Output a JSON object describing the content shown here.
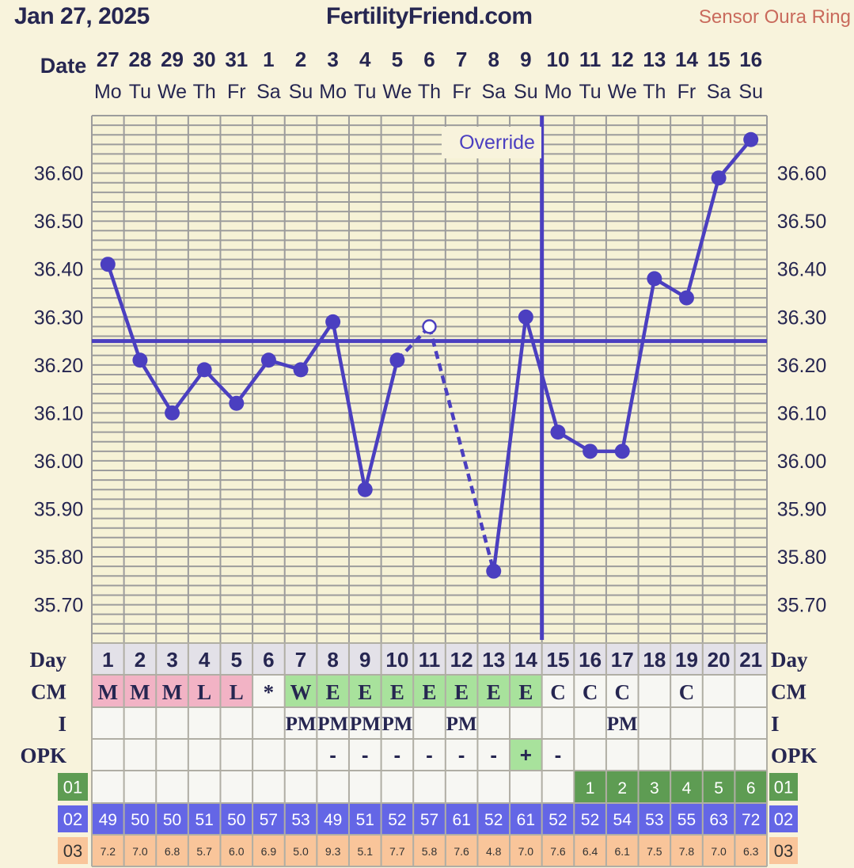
{
  "header": {
    "date": "Jan 27, 2025",
    "site": "FertilityFriend.com",
    "sensor": "Sensor Oura Ring"
  },
  "labels": {
    "date": "Date",
    "day": "Day",
    "cm": "CM",
    "intercourse": "I",
    "opk": "OPK",
    "row01": "01",
    "row02": "02",
    "row03": "03",
    "override": "Override"
  },
  "chart_data": {
    "type": "line",
    "title": "",
    "xlabel": "Date",
    "ylabel": "",
    "dates": [
      "27",
      "28",
      "29",
      "30",
      "31",
      "1",
      "2",
      "3",
      "4",
      "5",
      "6",
      "7",
      "8",
      "9",
      "10",
      "11",
      "12",
      "13",
      "14",
      "15",
      "16"
    ],
    "weekdays": [
      "Mo",
      "Tu",
      "We",
      "Th",
      "Fr",
      "Sa",
      "Su",
      "Mo",
      "Tu",
      "We",
      "Th",
      "Fr",
      "Sa",
      "Su",
      "Mo",
      "Tu",
      "We",
      "Th",
      "Fr",
      "Sa",
      "Su"
    ],
    "cycle_days": [
      "1",
      "2",
      "3",
      "4",
      "5",
      "6",
      "7",
      "8",
      "9",
      "10",
      "11",
      "12",
      "13",
      "14",
      "15",
      "16",
      "17",
      "18",
      "19",
      "20",
      "21"
    ],
    "temperatures": [
      36.41,
      36.21,
      36.1,
      36.19,
      36.12,
      36.21,
      36.19,
      36.29,
      35.94,
      36.21,
      36.28,
      null,
      35.77,
      36.3,
      36.06,
      36.02,
      36.02,
      36.38,
      36.34,
      36.59,
      36.67
    ],
    "discarded_index": 10,
    "ylim": [
      35.62,
      36.72
    ],
    "yticks": [
      "36.60",
      "36.50",
      "36.40",
      "36.30",
      "36.20",
      "36.10",
      "36.00",
      "35.90",
      "35.80",
      "35.70"
    ],
    "coverline": 36.25,
    "ovulation_day_index": 14,
    "grid": true,
    "line_color": "#4b3fc0"
  },
  "table": {
    "cm": [
      "M",
      "M",
      "M",
      "L",
      "L",
      "*",
      "W",
      "E",
      "E",
      "E",
      "E",
      "E",
      "E",
      "E",
      "C",
      "C",
      "C",
      "",
      "C",
      "",
      ""
    ],
    "intercourse": [
      "",
      "",
      "",
      "",
      "",
      "",
      "PM",
      "PM",
      "PM",
      "PM",
      "",
      "PM",
      "",
      "",
      "",
      "",
      "PM",
      "",
      "",
      "",
      ""
    ],
    "opk": [
      "",
      "",
      "",
      "",
      "",
      "",
      "",
      "-",
      "-",
      "-",
      "-",
      "-",
      "-",
      "+",
      "-",
      "",
      "",
      "",
      "",
      "",
      ""
    ],
    "row01": [
      "",
      "",
      "",
      "",
      "",
      "",
      "",
      "",
      "",
      "",
      "",
      "",
      "",
      "",
      "",
      "1",
      "2",
      "3",
      "4",
      "5",
      "6"
    ],
    "row02": [
      "49",
      "50",
      "50",
      "51",
      "50",
      "57",
      "53",
      "49",
      "51",
      "52",
      "57",
      "61",
      "52",
      "61",
      "52",
      "52",
      "54",
      "53",
      "55",
      "63",
      "72"
    ],
    "row03": [
      "7.2",
      "7.0",
      "6.8",
      "5.7",
      "6.0",
      "6.9",
      "5.0",
      "9.3",
      "5.1",
      "7.7",
      "5.8",
      "7.6",
      "4.8",
      "7.0",
      "7.6",
      "6.4",
      "6.1",
      "7.5",
      "7.8",
      "7.0",
      "6.3"
    ]
  },
  "colors": {
    "background": "#f8f3dc",
    "line": "#4b3fc0",
    "menstruation": "#f2b3c5",
    "fertile_cm": "#a8e29c",
    "opk_positive": "#a8e29c",
    "row01": "#5e9c53",
    "row02": "#6466e6",
    "row03": "#f9c59a",
    "day_header": "#e3e1e8"
  }
}
